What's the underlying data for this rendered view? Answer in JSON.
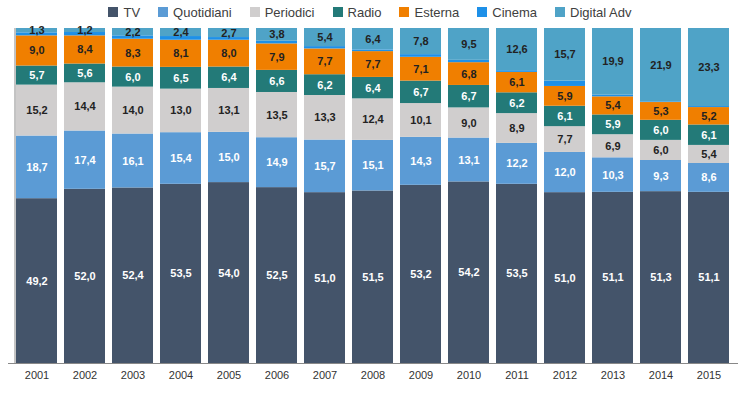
{
  "chart_data": {
    "type": "bar",
    "stacked": true,
    "data_labels": true,
    "legend": "top",
    "tick_labels": "x",
    "categories": [
      "2001",
      "2002",
      "2003",
      "2004",
      "2005",
      "2006",
      "2007",
      "2008",
      "2009",
      "2010",
      "2011",
      "2012",
      "2013",
      "2014",
      "2015"
    ],
    "ylim": [
      0,
      100
    ],
    "yticks": [],
    "series": [
      {
        "name": "TV",
        "color": "#44546a",
        "values": [
          49.2,
          52.0,
          52.4,
          53.5,
          54.0,
          52.5,
          51.0,
          51.5,
          53.2,
          54.2,
          53.5,
          51.0,
          51.1,
          51.3,
          51.1
        ],
        "value_labels": [
          "49,2",
          "52,0",
          "52,4",
          "53,5",
          "54,0",
          "52,5",
          "51,0",
          "51,5",
          "53,2",
          "54,2",
          "53,5",
          "51,0",
          "51,1",
          "51,3",
          "51,1"
        ]
      },
      {
        "name": "Quotidiani",
        "color": "#5b9bd5",
        "values": [
          18.7,
          17.4,
          16.1,
          15.4,
          15.0,
          14.9,
          15.7,
          15.1,
          14.3,
          13.1,
          12.2,
          12.0,
          10.3,
          9.3,
          8.6
        ],
        "value_labels": [
          "18,7",
          "17,4",
          "16,1",
          "15,4",
          "15,0",
          "14,9",
          "15,7",
          "15,1",
          "14,3",
          "13,1",
          "12,2",
          "12,0",
          "10,3",
          "9,3",
          "8,6"
        ]
      },
      {
        "name": "Periodici",
        "color": "#d0cece",
        "values": [
          15.2,
          14.4,
          14.0,
          13.0,
          13.1,
          13.5,
          13.3,
          12.4,
          10.1,
          9.0,
          8.9,
          7.7,
          6.9,
          6.0,
          5.4
        ],
        "value_labels": [
          "15,2",
          "14,4",
          "14,0",
          "13,0",
          "13,1",
          "13,5",
          "13,3",
          "12,4",
          "10,1",
          "9,0",
          "8,9",
          "7,7",
          "6,9",
          "6,0",
          "5,4"
        ]
      },
      {
        "name": "Radio",
        "color": "#237a78",
        "values": [
          5.7,
          5.6,
          6.0,
          6.5,
          6.4,
          6.6,
          6.2,
          6.4,
          6.7,
          6.7,
          6.2,
          6.1,
          5.9,
          6.0,
          6.1
        ],
        "value_labels": [
          "5,7",
          "5,6",
          "6,0",
          "6,5",
          "6,4",
          "6,6",
          "6,2",
          "6,4",
          "6,7",
          "6,7",
          "6,2",
          "6,1",
          "5,9",
          "6,0",
          "6,1"
        ]
      },
      {
        "name": "Esterna",
        "color": "#f07f00",
        "values": [
          9.0,
          8.4,
          8.3,
          8.1,
          8.0,
          7.9,
          7.7,
          7.7,
          7.1,
          6.8,
          6.1,
          5.9,
          5.4,
          5.3,
          5.2
        ],
        "value_labels": [
          "9,0",
          "8,4",
          "8,3",
          "8,1",
          "8,0",
          "7,9",
          "7,7",
          "7,7",
          "7,1",
          "6,8",
          "6,1",
          "5,9",
          "5,4",
          "5,3",
          "5,2"
        ]
      },
      {
        "name": "Cinema",
        "color": "#1e90e8",
        "values": [
          0.9,
          1.0,
          1.0,
          1.1,
          0.8,
          0.8,
          0.7,
          0.5,
          0.8,
          0.7,
          0.5,
          1.6,
          0.5,
          0.2,
          0.3
        ]
      },
      {
        "name": "Digital Adv",
        "color": "#4fa3c7",
        "values": [
          1.3,
          1.2,
          2.2,
          2.4,
          2.7,
          3.8,
          5.4,
          6.4,
          7.8,
          9.5,
          12.6,
          15.7,
          19.9,
          21.9,
          23.3
        ],
        "value_labels": [
          "1,3",
          "1,2",
          "2,2",
          "2,4",
          "2,7",
          "3,8",
          "5,4",
          "6,4",
          "7,8",
          "9,5",
          "12,6",
          "15,7",
          "19,9",
          "21,9",
          "23,3"
        ]
      }
    ]
  }
}
